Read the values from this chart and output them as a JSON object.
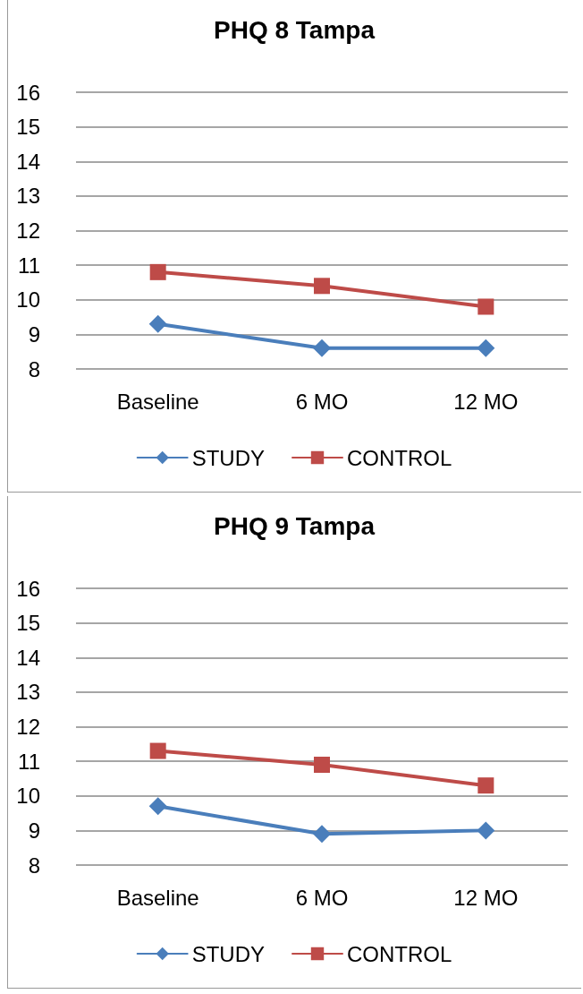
{
  "chart_data": [
    {
      "type": "line",
      "title": "PHQ 8 Tampa",
      "categories": [
        "Baseline",
        "6 MO",
        "12 MO"
      ],
      "series": [
        {
          "name": "STUDY",
          "color": "#4a7ebb",
          "values": [
            9.3,
            8.6,
            8.6
          ],
          "marker": "diamond"
        },
        {
          "name": "CONTROL",
          "color": "#be4b48",
          "values": [
            10.8,
            10.4,
            9.8
          ],
          "marker": "square"
        }
      ],
      "ylim": [
        8,
        16
      ],
      "yticks": [
        8,
        9,
        10,
        11,
        12,
        13,
        14,
        15,
        16
      ],
      "grid": "y",
      "legend": "bottom"
    },
    {
      "type": "line",
      "title": "PHQ 9 Tampa",
      "categories": [
        "Baseline",
        "6 MO",
        "12 MO"
      ],
      "series": [
        {
          "name": "STUDY",
          "color": "#4a7ebb",
          "values": [
            9.7,
            8.9,
            9.0
          ],
          "marker": "diamond"
        },
        {
          "name": "CONTROL",
          "color": "#be4b48",
          "values": [
            11.3,
            10.9,
            10.3
          ],
          "marker": "square"
        }
      ],
      "ylim": [
        8,
        16
      ],
      "yticks": [
        8,
        9,
        10,
        11,
        12,
        13,
        14,
        15,
        16
      ],
      "grid": "y",
      "legend": "bottom"
    }
  ]
}
